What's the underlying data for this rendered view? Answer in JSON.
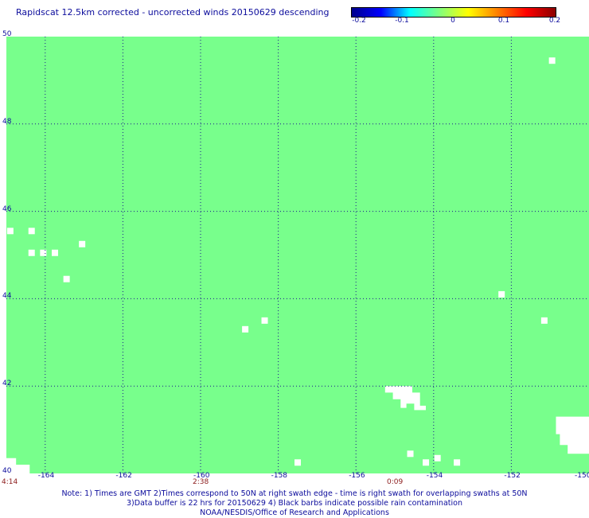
{
  "title": "Rapidscat 12.5km corrected - uncorrected winds 20150629 descending",
  "colorbar": {
    "labels": [
      "-0.2",
      "-0.1",
      "0",
      "0.1",
      "0.2"
    ],
    "stops": [
      "#00008b",
      "#0000ff",
      "#00ffff",
      "#7fff7f",
      "#ffff00",
      "#ff8000",
      "#ff0000",
      "#8b0000"
    ]
  },
  "map": {
    "fill_color": "#78ff8c",
    "grid_color": "#1a1a8c",
    "lon_range": [
      -165,
      -150
    ],
    "lat_range": [
      40,
      50
    ],
    "lat_ticks": [
      "40",
      "42",
      "44",
      "46",
      "48",
      "50"
    ],
    "lon_ticks": [
      "-164",
      "-162",
      "-160",
      "-158",
      "-156",
      "-154",
      "-152",
      "-150"
    ],
    "missing_cells_lonlat": [
      [
        -164.9,
        45.55
      ],
      [
        -164.35,
        45.55
      ],
      [
        -164.35,
        45.05
      ],
      [
        -164.05,
        45.05
      ],
      [
        -163.75,
        45.05
      ],
      [
        -163.05,
        45.25
      ],
      [
        -163.45,
        44.45
      ],
      [
        -158.85,
        43.3
      ],
      [
        -158.35,
        43.5
      ],
      [
        -152.25,
        44.1
      ],
      [
        -151.15,
        43.5
      ],
      [
        -150.95,
        49.45
      ],
      [
        -157.5,
        40.25
      ],
      [
        -154.2,
        40.25
      ],
      [
        -153.9,
        40.35
      ],
      [
        -153.4,
        40.25
      ],
      [
        -154.6,
        40.45
      ]
    ],
    "missing_polygons_lonlat": [
      [
        [
          -155.25,
          42.0
        ],
        [
          -154.55,
          42.0
        ],
        [
          -154.55,
          41.85
        ],
        [
          -154.35,
          41.85
        ],
        [
          -154.35,
          41.55
        ],
        [
          -154.2,
          41.55
        ],
        [
          -154.2,
          41.45
        ],
        [
          -154.5,
          41.45
        ],
        [
          -154.5,
          41.6
        ],
        [
          -154.7,
          41.6
        ],
        [
          -154.7,
          41.5
        ],
        [
          -154.85,
          41.5
        ],
        [
          -154.85,
          41.7
        ],
        [
          -155.05,
          41.7
        ],
        [
          -155.05,
          41.85
        ],
        [
          -155.25,
          41.85
        ]
      ],
      [
        [
          -150.85,
          41.3
        ],
        [
          -150.0,
          41.3
        ],
        [
          -150.0,
          40.45
        ],
        [
          -150.55,
          40.45
        ],
        [
          -150.55,
          40.65
        ],
        [
          -150.75,
          40.65
        ],
        [
          -150.75,
          40.9
        ],
        [
          -150.85,
          40.9
        ]
      ],
      [
        [
          -165.0,
          40.35
        ],
        [
          -164.75,
          40.35
        ],
        [
          -164.75,
          40.2
        ],
        [
          -164.4,
          40.2
        ],
        [
          -164.4,
          40.0
        ],
        [
          -165.0,
          40.0
        ]
      ]
    ]
  },
  "time_labels": [
    {
      "text": "4:14",
      "lon": -165.0
    },
    {
      "text": "2:38",
      "lon": -160.0
    },
    {
      "text": "0:09",
      "lon": -155.0
    }
  ],
  "notes": [
    "Note: 1) Times are GMT 2)Times correspond to 50N at right swath edge - time is right swath for overlapping swaths at 50N",
    "3)Data buffer is 22 hrs for 20150629 4) Black barbs indicate possible rain contamination",
    "NOAA/NESDIS/Office of Research and Applications"
  ]
}
